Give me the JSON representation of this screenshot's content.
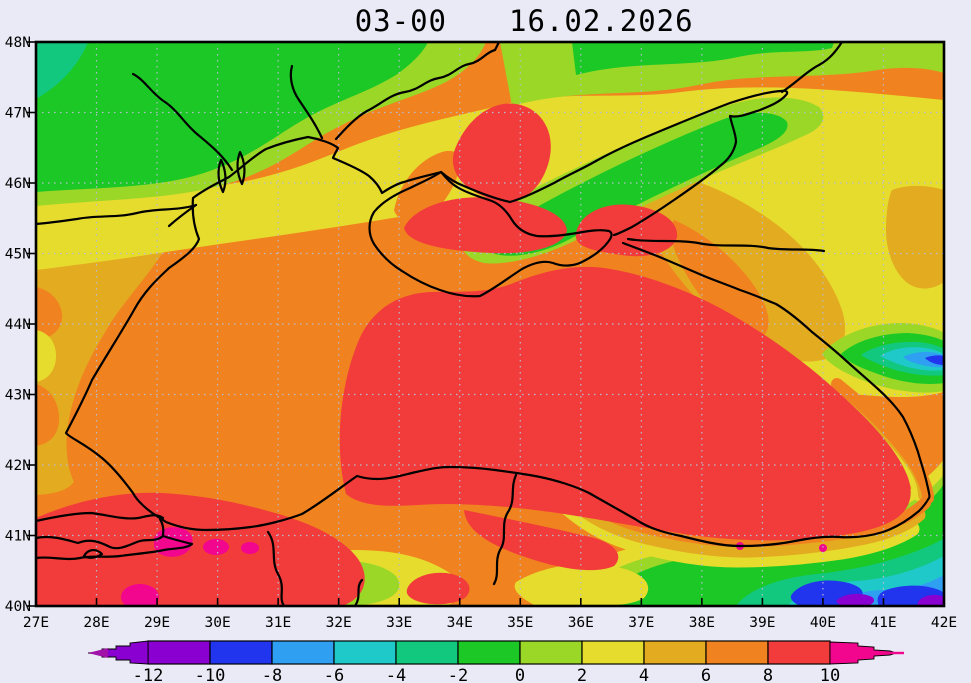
{
  "title": {
    "time": "03-00",
    "date": "16.02.2026"
  },
  "map": {
    "lat_labels": [
      "48N",
      "47N",
      "46N",
      "45N",
      "44N",
      "43N",
      "42N",
      "41N",
      "40N"
    ],
    "lon_labels": [
      "27E",
      "28E",
      "29E",
      "30E",
      "31E",
      "32E",
      "33E",
      "34E",
      "35E",
      "36E",
      "37E",
      "38E",
      "39E",
      "40E",
      "41E",
      "42E"
    ],
    "lat_range": [
      40,
      48
    ],
    "lon_range": [
      27,
      42
    ],
    "region": "black-sea-azov-sea-filled-contour-field"
  },
  "colorbar": {
    "tick_labels": [
      "-12",
      "-10",
      "-8",
      "-6",
      "-4",
      "-2",
      "0",
      "2",
      "4",
      "6",
      "8",
      "10"
    ],
    "segment_keys": [
      "m12_m10",
      "m10_m8",
      "m8_m6",
      "m6_m4",
      "m4_m2",
      "m2_0",
      "p0_2",
      "p2_4",
      "p4_6",
      "p6_8",
      "p8_10"
    ]
  },
  "palette": {
    "below12_tip": "#a112a8",
    "m12_m10": "#8a00d0",
    "m10_m8": "#2134ee",
    "m8_m6": "#2f9ff2",
    "m6_m4": "#1fc9c9",
    "m4_m2": "#12c87e",
    "m2_0": "#1cc826",
    "p0_2": "#9bd727",
    "p2_4": "#e6dc2e",
    "p4_6": "#e3ab20",
    "p6_8": "#f0831f",
    "p8_10": "#f23c3b",
    "above10": "#f2068e"
  },
  "page_background": "#e9eaf5",
  "frame_color": "#000000",
  "grid_color": "#b7bcd2",
  "coast_color": "#000000",
  "chart_data": {
    "type": "heatmap",
    "title": "03-00 16.02.2026",
    "x_ticks": [
      "27E",
      "28E",
      "29E",
      "30E",
      "31E",
      "32E",
      "33E",
      "34E",
      "35E",
      "36E",
      "37E",
      "38E",
      "39E",
      "40E",
      "41E",
      "42E"
    ],
    "y_ticks": [
      "40N",
      "41N",
      "42N",
      "43N",
      "44N",
      "45N",
      "46N",
      "47N",
      "48N"
    ],
    "scale_ticks": [
      -12,
      -10,
      -8,
      -6,
      -4,
      -2,
      0,
      2,
      4,
      6,
      8,
      10
    ],
    "legend_position": "bottom",
    "grid": true,
    "notable_values": {
      "black_sea_east_core": 9,
      "black_sea_west": 7,
      "sea_of_azov_band": -1,
      "northwest_land": -1,
      "northeast_caucasus_cold_pocket": -9,
      "southeast_mountains_corner": -11,
      "marmara_bosphorus_hotspots": 11
    }
  }
}
